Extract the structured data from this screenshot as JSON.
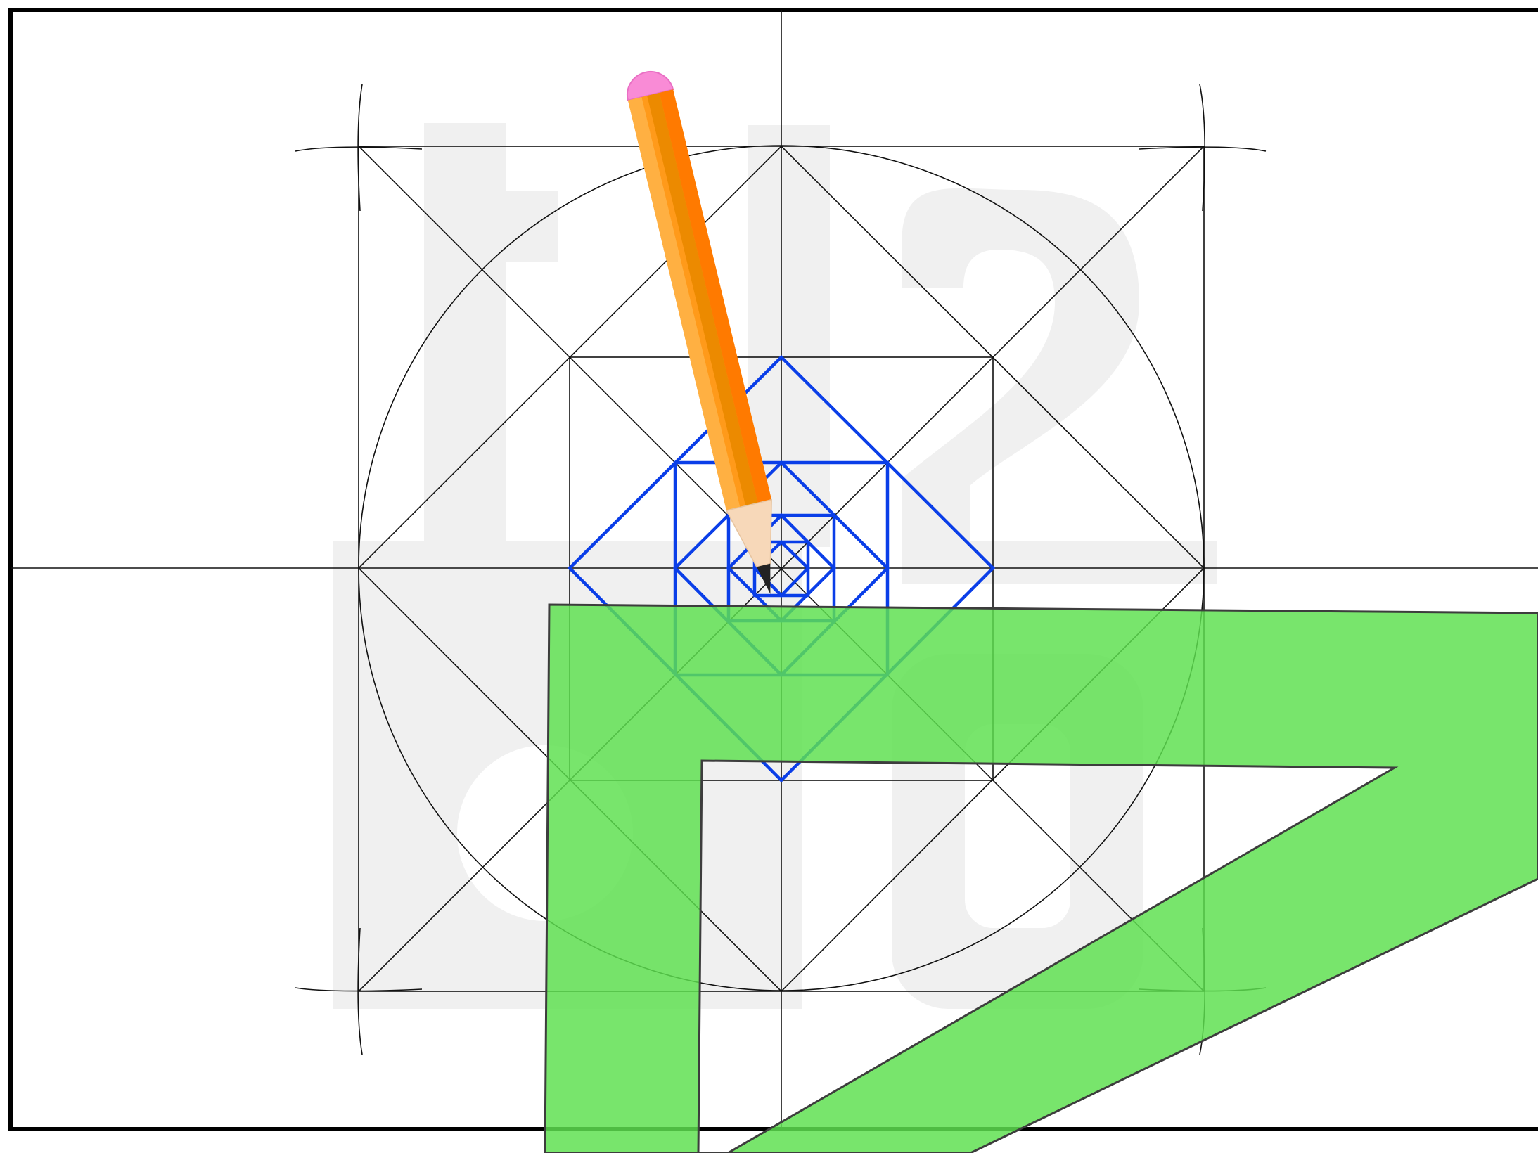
{
  "diagram": {
    "description_visible_text": "",
    "colors": {
      "paper": "#ffffff",
      "frame": "#000000",
      "construction_lines": "#111111",
      "nested_squares": "#0a3ee8",
      "watermark": "#f0f0f0",
      "set_square_fill": "#5ee050",
      "set_square_outline": "#3d3d3d",
      "pencil_body": "#ff9a1a",
      "pencil_eraser": "#f98bd6",
      "pencil_wood": "#f7d8b9",
      "pencil_lead": "#222222"
    },
    "nested_square_levels": 7,
    "objects": [
      "pencil-icon",
      "set-square-icon",
      "logo-watermark"
    ]
  }
}
